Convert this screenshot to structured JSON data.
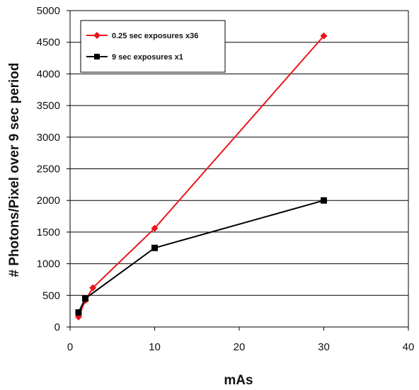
{
  "chart_data": {
    "type": "line",
    "title": "",
    "xlabel": "mAs",
    "ylabel": "# Photons/Pixel over 9 sec period",
    "xlim": [
      0,
      40
    ],
    "ylim": [
      0,
      5000
    ],
    "xticks": [
      0,
      10,
      20,
      30,
      40
    ],
    "yticks": [
      0,
      500,
      1000,
      1500,
      2000,
      2500,
      3000,
      3500,
      4000,
      4500,
      5000
    ],
    "grid": "horizontal",
    "legend_position": "top-left",
    "series": [
      {
        "name": "0.25 sec exposures x36",
        "color": "#e8161b",
        "marker": "diamond",
        "x": [
          1,
          1.8,
          2.7,
          10,
          30
        ],
        "y": [
          160,
          420,
          620,
          1560,
          4600
        ]
      },
      {
        "name": "9 sec exposures x1",
        "color": "#000000",
        "marker": "square",
        "x": [
          1,
          1.8,
          10,
          30
        ],
        "y": [
          230,
          450,
          1250,
          2000
        ]
      }
    ]
  }
}
